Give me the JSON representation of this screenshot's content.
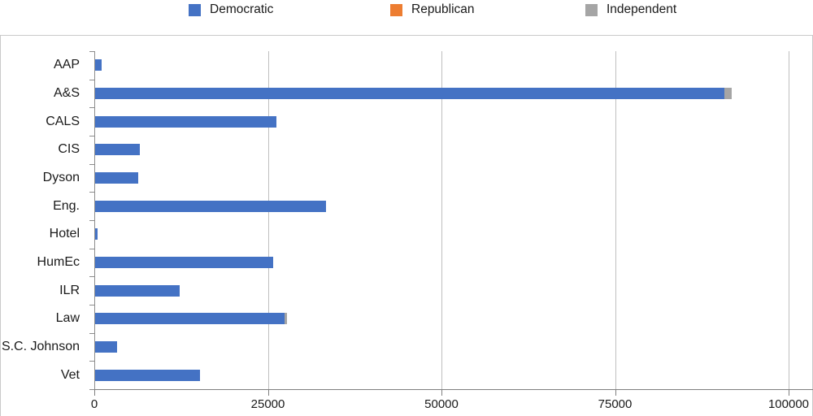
{
  "legend": [
    {
      "label": "Democratic",
      "color": "#4472C4",
      "icon": "blue-square-swatch"
    },
    {
      "label": "Republican",
      "color": "#ED7D31",
      "icon": "orange-square-swatch"
    },
    {
      "label": "Independent",
      "color": "#A5A5A5",
      "icon": "gray-square-swatch"
    }
  ],
  "chart_data": {
    "type": "bar",
    "orientation": "horizontal",
    "stacked": true,
    "title": "",
    "xlabel": "",
    "ylabel": "",
    "categories": [
      "AAP",
      "A&S",
      "CALS",
      "CIS",
      "Dyson",
      "Eng.",
      "Hotel",
      "HumEc",
      "ILR",
      "Law",
      "S.C. Johnson",
      "Vet"
    ],
    "series": [
      {
        "name": "Democratic",
        "color": "#4472C4",
        "values": [
          900,
          90600,
          26100,
          6400,
          6200,
          33300,
          400,
          25700,
          12200,
          27300,
          3200,
          15100
        ]
      },
      {
        "name": "Republican",
        "color": "#ED7D31",
        "values": [
          0,
          0,
          0,
          0,
          0,
          0,
          0,
          0,
          0,
          0,
          0,
          0
        ]
      },
      {
        "name": "Independent",
        "color": "#A5A5A5",
        "values": [
          0,
          1000,
          0,
          0,
          0,
          0,
          0,
          0,
          0,
          400,
          0,
          0
        ]
      }
    ],
    "x_ticks": [
      0,
      25000,
      50000,
      75000,
      100000
    ],
    "x_tick_labels": [
      "0",
      "25000",
      "50000",
      "75000",
      "100000"
    ],
    "xlim": [
      0,
      103500
    ],
    "grid": true,
    "legend_position": "top"
  }
}
